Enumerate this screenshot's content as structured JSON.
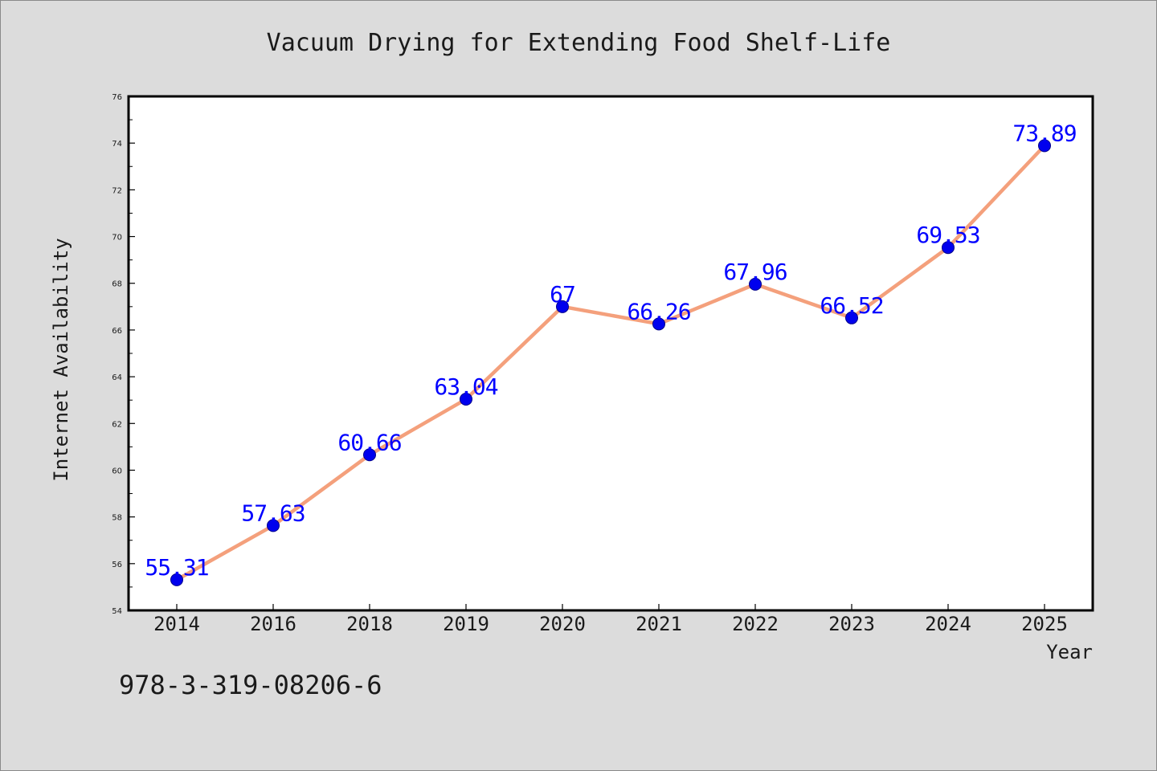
{
  "chart_data": {
    "type": "line",
    "title": "Vacuum Drying for Extending Food Shelf-Life",
    "xlabel": "Year",
    "ylabel": "Internet Availability",
    "categories": [
      "2014",
      "2016",
      "2018",
      "2019",
      "2020",
      "2021",
      "2022",
      "2023",
      "2024",
      "2025"
    ],
    "series": [
      {
        "values": [
          55.31,
          57.63,
          60.66,
          63.04,
          67,
          66.26,
          67.96,
          66.52,
          69.53,
          73.89
        ],
        "data_labels": [
          "55.31",
          "57.63",
          "60.66",
          "63.04",
          "67",
          "66.26",
          "67.96",
          "66.52",
          "69.53",
          "73.89"
        ]
      }
    ],
    "ylim": [
      54,
      76
    ],
    "yticks": [
      "54",
      "56",
      "58",
      "60",
      "62",
      "64",
      "66",
      "68",
      "70",
      "72",
      "74",
      "76"
    ],
    "grid": false,
    "legend": "none",
    "colors": {
      "line": "#f4a07c",
      "marker": "#0000ee",
      "data_label": "#0000ff",
      "background": "#dcdcdc"
    }
  },
  "footnote": "978-3-319-08206-6"
}
